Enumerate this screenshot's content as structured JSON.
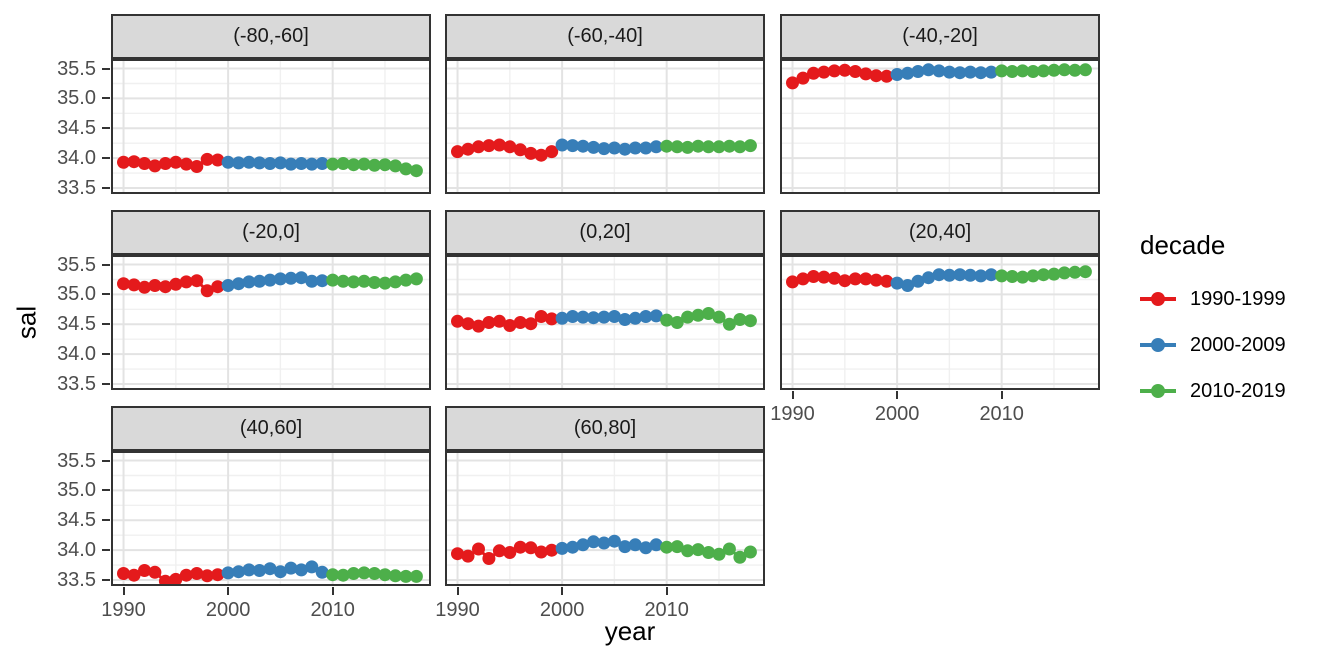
{
  "figure": {
    "x_axis_title": "year",
    "y_axis_title": "sal"
  },
  "legend": {
    "title": "decade",
    "entries": [
      {
        "label": "1990-1999",
        "color": "#E41A1C"
      },
      {
        "label": "2000-2009",
        "color": "#377EB8"
      },
      {
        "label": "2010-2019",
        "color": "#4DAF4A"
      }
    ]
  },
  "colors": {
    "red_series": "#E41A1C",
    "blue_series": "#377EB8",
    "green_series": "#4DAF4A",
    "strip_background": "#D9D9D9",
    "panel_border": "#333333",
    "grid_major": "#E3E3E3",
    "grid_minor": "#F0F0F0",
    "tick_text": "#4D4D4D"
  },
  "chart_data": {
    "type": "scatter",
    "title": "",
    "xlabel": "year",
    "ylabel": "sal",
    "grid": true,
    "legend_position": "right",
    "x_ticks": [
      1990,
      2000,
      2010
    ],
    "x_tick_labels": [
      "1990",
      "2000",
      "2010"
    ],
    "x_minor_ticks": [
      1995,
      2005,
      2015
    ],
    "y_ticks": [
      33.5,
      34.0,
      34.5,
      35.0,
      35.5
    ],
    "y_tick_labels": [
      "33.5",
      "34.0",
      "34.5",
      "35.0",
      "35.5"
    ],
    "y_minor_ticks": [
      33.75,
      34.25,
      34.75,
      35.25
    ],
    "x_range": [
      1988.8,
      2019.4
    ],
    "y_range": [
      33.4,
      35.66
    ],
    "facets": [
      {
        "label": "(-80,-60]",
        "series": [
          {
            "name": "1990-1999",
            "color": "#E41A1C",
            "start_year": 1990,
            "values": [
              33.93,
              33.94,
              33.91,
              33.87,
              33.91,
              33.93,
              33.9,
              33.86,
              33.98,
              33.97
            ]
          },
          {
            "name": "2000-2009",
            "color": "#377EB8",
            "start_year": 2000,
            "values": [
              33.93,
              33.92,
              33.93,
              33.92,
              33.91,
              33.92,
              33.9,
              33.91,
              33.9,
              33.91
            ]
          },
          {
            "name": "2010-2019",
            "color": "#4DAF4A",
            "start_year": 2010,
            "values": [
              33.9,
              33.91,
              33.89,
              33.9,
              33.88,
              33.89,
              33.87,
              33.82,
              33.79
            ]
          }
        ]
      },
      {
        "label": "(-60,-40]",
        "series": [
          {
            "name": "1990-1999",
            "color": "#E41A1C",
            "start_year": 1990,
            "values": [
              34.11,
              34.15,
              34.19,
              34.21,
              34.22,
              34.19,
              34.14,
              34.08,
              34.05,
              34.11
            ]
          },
          {
            "name": "2000-2009",
            "color": "#377EB8",
            "start_year": 2000,
            "values": [
              34.22,
              34.21,
              34.2,
              34.18,
              34.16,
              34.17,
              34.15,
              34.17,
              34.17,
              34.19
            ]
          },
          {
            "name": "2010-2019",
            "color": "#4DAF4A",
            "start_year": 2010,
            "values": [
              34.2,
              34.19,
              34.18,
              34.2,
              34.19,
              34.19,
              34.2,
              34.19,
              34.21
            ]
          }
        ]
      },
      {
        "label": "(-40,-20]",
        "series": [
          {
            "name": "1990-1999",
            "color": "#E41A1C",
            "start_year": 1990,
            "values": [
              35.26,
              35.34,
              35.42,
              35.44,
              35.46,
              35.47,
              35.45,
              35.41,
              35.38,
              35.37
            ]
          },
          {
            "name": "2000-2009",
            "color": "#377EB8",
            "start_year": 2000,
            "values": [
              35.4,
              35.42,
              35.45,
              35.48,
              35.46,
              35.44,
              35.43,
              35.44,
              35.43,
              35.44
            ]
          },
          {
            "name": "2010-2019",
            "color": "#4DAF4A",
            "start_year": 2010,
            "values": [
              35.46,
              35.45,
              35.46,
              35.45,
              35.46,
              35.47,
              35.48,
              35.47,
              35.48
            ]
          }
        ]
      },
      {
        "label": "(-20,0]",
        "series": [
          {
            "name": "1990-1999",
            "color": "#E41A1C",
            "start_year": 1990,
            "values": [
              35.18,
              35.16,
              35.12,
              35.15,
              35.13,
              35.17,
              35.21,
              35.23,
              35.06,
              35.13
            ]
          },
          {
            "name": "2000-2009",
            "color": "#377EB8",
            "start_year": 2000,
            "values": [
              35.15,
              35.18,
              35.21,
              35.22,
              35.24,
              35.26,
              35.27,
              35.28,
              35.22,
              35.23
            ]
          },
          {
            "name": "2010-2019",
            "color": "#4DAF4A",
            "start_year": 2010,
            "values": [
              35.24,
              35.22,
              35.21,
              35.22,
              35.2,
              35.19,
              35.21,
              35.24,
              35.26
            ]
          }
        ]
      },
      {
        "label": "(0,20]",
        "series": [
          {
            "name": "1990-1999",
            "color": "#E41A1C",
            "start_year": 1990,
            "values": [
              34.55,
              34.51,
              34.47,
              34.53,
              34.55,
              34.48,
              34.53,
              34.51,
              34.63,
              34.59
            ]
          },
          {
            "name": "2000-2009",
            "color": "#377EB8",
            "start_year": 2000,
            "values": [
              34.6,
              34.63,
              34.62,
              34.61,
              34.62,
              34.63,
              34.58,
              34.6,
              34.63,
              34.64
            ]
          },
          {
            "name": "2010-2019",
            "color": "#4DAF4A",
            "start_year": 2010,
            "values": [
              34.57,
              34.53,
              34.62,
              34.65,
              34.68,
              34.62,
              34.5,
              34.58,
              34.56
            ]
          }
        ]
      },
      {
        "label": "(20,40]",
        "series": [
          {
            "name": "1990-1999",
            "color": "#E41A1C",
            "start_year": 1990,
            "values": [
              35.21,
              35.26,
              35.3,
              35.29,
              35.27,
              35.23,
              35.26,
              35.26,
              35.24,
              35.22
            ]
          },
          {
            "name": "2000-2009",
            "color": "#377EB8",
            "start_year": 2000,
            "values": [
              35.19,
              35.15,
              35.22,
              35.28,
              35.33,
              35.32,
              35.33,
              35.32,
              35.31,
              35.33
            ]
          },
          {
            "name": "2010-2019",
            "color": "#4DAF4A",
            "start_year": 2010,
            "values": [
              35.31,
              35.3,
              35.29,
              35.31,
              35.33,
              35.34,
              35.36,
              35.37,
              35.38
            ]
          }
        ]
      },
      {
        "label": "(40,60]",
        "series": [
          {
            "name": "1990-1999",
            "color": "#E41A1C",
            "start_year": 1990,
            "values": [
              33.61,
              33.58,
              33.66,
              33.63,
              33.48,
              33.51,
              33.58,
              33.61,
              33.57,
              33.59
            ]
          },
          {
            "name": "2000-2009",
            "color": "#377EB8",
            "start_year": 2000,
            "values": [
              33.62,
              33.64,
              33.67,
              33.66,
              33.69,
              33.64,
              33.7,
              33.67,
              33.72,
              33.63
            ]
          },
          {
            "name": "2010-2019",
            "color": "#4DAF4A",
            "start_year": 2010,
            "values": [
              33.59,
              33.58,
              33.61,
              33.62,
              33.61,
              33.59,
              33.57,
              33.56,
              33.56
            ]
          }
        ]
      },
      {
        "label": "(60,80]",
        "series": [
          {
            "name": "1990-1999",
            "color": "#E41A1C",
            "start_year": 1990,
            "values": [
              33.94,
              33.9,
              34.02,
              33.86,
              33.99,
              33.96,
              34.05,
              34.04,
              33.97,
              34.0
            ]
          },
          {
            "name": "2000-2009",
            "color": "#377EB8",
            "start_year": 2000,
            "values": [
              34.03,
              34.05,
              34.09,
              34.14,
              34.12,
              34.15,
              34.06,
              34.09,
              34.04,
              34.09
            ]
          },
          {
            "name": "2010-2019",
            "color": "#4DAF4A",
            "start_year": 2010,
            "values": [
              34.05,
              34.06,
              33.99,
              34.01,
              33.96,
              33.93,
              34.02,
              33.88,
              33.97
            ]
          }
        ]
      }
    ]
  }
}
